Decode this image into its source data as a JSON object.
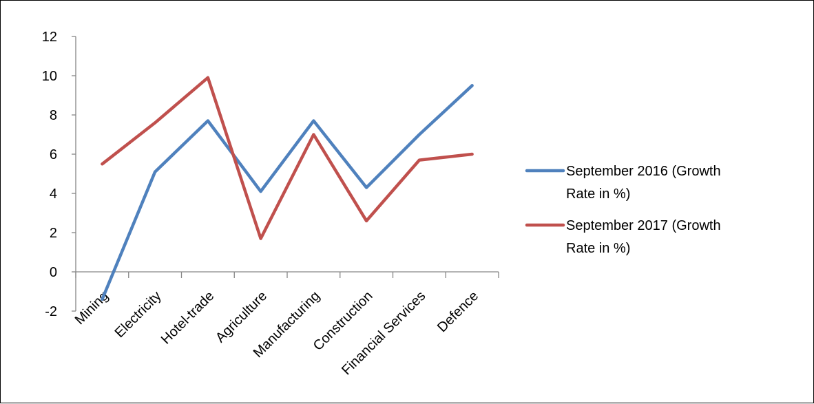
{
  "chart_data": {
    "type": "line",
    "title": "",
    "xlabel": "",
    "ylabel": "",
    "categories": [
      "Mining",
      "Electricity",
      "Hotel-trade",
      "Agriculture",
      "Manufacturing",
      "Construction",
      "Financial Services",
      "Defence"
    ],
    "series": [
      {
        "name": "September 2016 (Growth Rate in %)",
        "legend_lines": [
          "September 2016 (Growth",
          "Rate in %)"
        ],
        "color": "#4f81bd",
        "values": [
          -1.4,
          5.1,
          7.7,
          4.1,
          7.7,
          4.3,
          7.0,
          9.5
        ]
      },
      {
        "name": "September 2017 (Growth Rate in %)",
        "legend_lines": [
          "September 2017 (Growth",
          "Rate in %)"
        ],
        "color": "#c0504d",
        "values": [
          5.5,
          7.6,
          9.9,
          1.7,
          7.0,
          2.6,
          5.7,
          6.0
        ]
      }
    ],
    "ylim": [
      -2,
      12
    ],
    "ytick_labels": [
      "-2",
      "0",
      "2",
      "4",
      "6",
      "8",
      "10",
      "12"
    ],
    "grid": false,
    "legend_position": "right"
  }
}
